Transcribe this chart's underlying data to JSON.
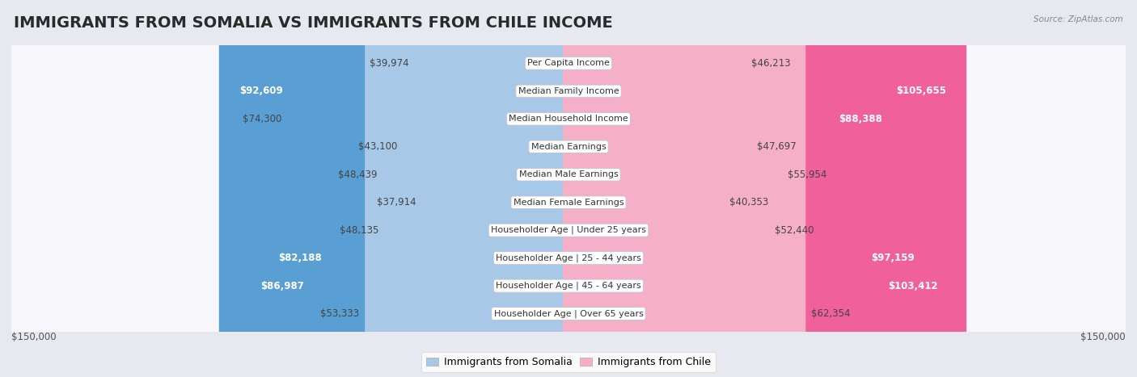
{
  "title": "IMMIGRANTS FROM SOMALIA VS IMMIGRANTS FROM CHILE INCOME",
  "source": "Source: ZipAtlas.com",
  "categories": [
    "Per Capita Income",
    "Median Family Income",
    "Median Household Income",
    "Median Earnings",
    "Median Male Earnings",
    "Median Female Earnings",
    "Householder Age | Under 25 years",
    "Householder Age | 25 - 44 years",
    "Householder Age | 45 - 64 years",
    "Householder Age | Over 65 years"
  ],
  "somalia_values": [
    39974,
    92609,
    74300,
    43100,
    48439,
    37914,
    48135,
    82188,
    86987,
    53333
  ],
  "chile_values": [
    46213,
    105655,
    88388,
    47697,
    55954,
    40353,
    52440,
    97159,
    103412,
    62354
  ],
  "somalia_labels": [
    "$39,974",
    "$92,609",
    "$74,300",
    "$43,100",
    "$48,439",
    "$37,914",
    "$48,135",
    "$82,188",
    "$86,987",
    "$53,333"
  ],
  "chile_labels": [
    "$46,213",
    "$105,655",
    "$88,388",
    "$47,697",
    "$55,954",
    "$40,353",
    "$52,440",
    "$97,159",
    "$103,412",
    "$62,354"
  ],
  "somalia_color_normal": "#a8c8e8",
  "somalia_color_highlight": "#5a9fd4",
  "chile_color_normal": "#f5b0c8",
  "chile_color_highlight": "#f0609a",
  "highlight_threshold": 80000,
  "max_value": 150000,
  "xlabel_left": "$150,000",
  "xlabel_right": "$150,000",
  "legend_somalia": "Immigrants from Somalia",
  "legend_chile": "Immigrants from Chile",
  "background_color": "#e8e8f0",
  "row_bg_color": "#f8f8fc",
  "title_fontsize": 14,
  "label_fontsize": 8.5,
  "category_fontsize": 8
}
